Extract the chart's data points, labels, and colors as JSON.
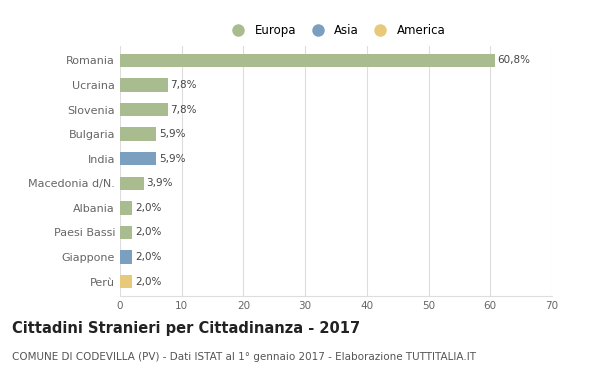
{
  "categories": [
    "Romania",
    "Ucraina",
    "Slovenia",
    "Bulgaria",
    "India",
    "Macedonia d/N.",
    "Albania",
    "Paesi Bassi",
    "Giappone",
    "Perù"
  ],
  "values": [
    60.8,
    7.8,
    7.8,
    5.9,
    5.9,
    3.9,
    2.0,
    2.0,
    2.0,
    2.0
  ],
  "labels": [
    "60,8%",
    "7,8%",
    "7,8%",
    "5,9%",
    "5,9%",
    "3,9%",
    "2,0%",
    "2,0%",
    "2,0%",
    "2,0%"
  ],
  "colors": [
    "#a8bc8f",
    "#a8bc8f",
    "#a8bc8f",
    "#a8bc8f",
    "#7b9fbe",
    "#a8bc8f",
    "#a8bc8f",
    "#a8bc8f",
    "#7b9fbe",
    "#e8c97a"
  ],
  "legend": [
    {
      "label": "Europa",
      "color": "#a8bc8f"
    },
    {
      "label": "Asia",
      "color": "#7b9fbe"
    },
    {
      "label": "America",
      "color": "#e8c97a"
    }
  ],
  "xlim": [
    0,
    70
  ],
  "xticks": [
    0,
    10,
    20,
    30,
    40,
    50,
    60,
    70
  ],
  "title": "Cittadini Stranieri per Cittadinanza - 2017",
  "subtitle": "COMUNE DI CODEVILLA (PV) - Dati ISTAT al 1° gennaio 2017 - Elaborazione TUTTITALIA.IT",
  "title_fontsize": 10.5,
  "subtitle_fontsize": 7.5,
  "bar_height": 0.55,
  "background_color": "#ffffff",
  "grid_color": "#dddddd",
  "tick_label_color": "#666666",
  "value_label_fontsize": 7.5,
  "legend_fontsize": 8.5
}
